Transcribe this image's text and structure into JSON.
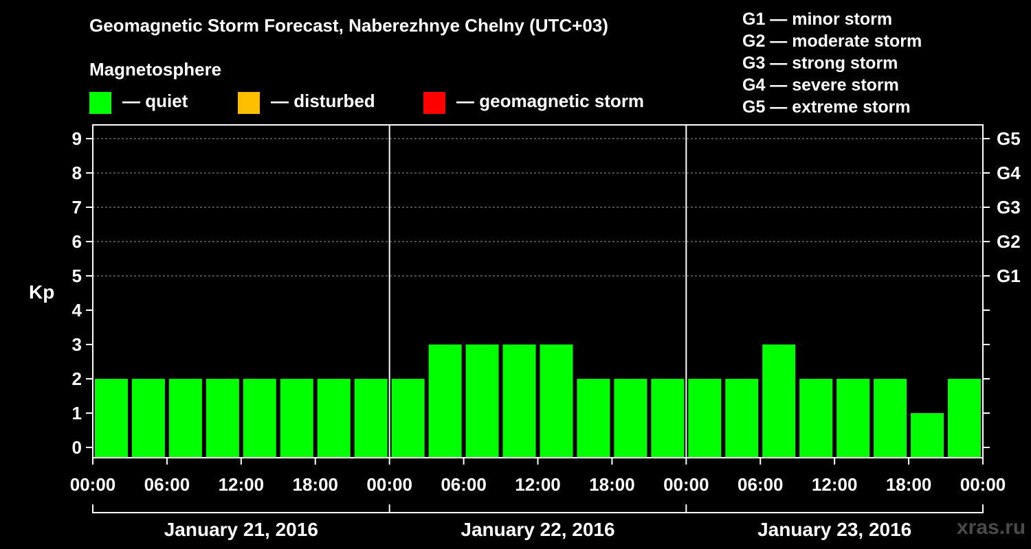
{
  "title": "Geomagnetic Storm Forecast, Naberezhnye Chelny (UTC+03)",
  "legend": {
    "heading": "Magnetosphere",
    "items": [
      {
        "label": "— quiet",
        "color": "#00ff00"
      },
      {
        "label": "— disturbed",
        "color": "#ffbf00"
      },
      {
        "label": "— geomagnetic storm",
        "color": "#ff0000"
      }
    ]
  },
  "g_scale_legend": [
    "G1 — minor storm",
    "G2 — moderate storm",
    "G3 — strong storm",
    "G4 — severe storm",
    "G5 — extreme storm"
  ],
  "watermark": "xras.ru",
  "chart_data": {
    "type": "bar",
    "title": "Geomagnetic Storm Forecast, Naberezhnye Chelny (UTC+03)",
    "ylabel": "Kp",
    "ylim": [
      0,
      9
    ],
    "yticks": [
      0,
      1,
      2,
      3,
      4,
      5,
      6,
      7,
      8,
      9
    ],
    "right_axis_labels": [
      {
        "kp": 5,
        "label": "G1"
      },
      {
        "kp": 6,
        "label": "G2"
      },
      {
        "kp": 7,
        "label": "G3"
      },
      {
        "kp": 8,
        "label": "G4"
      },
      {
        "kp": 9,
        "label": "G5"
      }
    ],
    "xtick_labels": [
      "00:00",
      "06:00",
      "12:00",
      "18:00",
      "00:00",
      "06:00",
      "12:00",
      "18:00",
      "00:00",
      "06:00",
      "12:00",
      "18:00",
      "00:00"
    ],
    "days": [
      "January 21, 2016",
      "January 22, 2016",
      "January 23, 2016"
    ],
    "interval_hours": 3,
    "values": [
      2,
      2,
      2,
      2,
      2,
      2,
      2,
      2,
      2,
      3,
      3,
      3,
      3,
      2,
      2,
      2,
      2,
      2,
      3,
      2,
      2,
      2,
      1,
      2
    ],
    "bar_color": "#00ff00",
    "grid": true
  }
}
